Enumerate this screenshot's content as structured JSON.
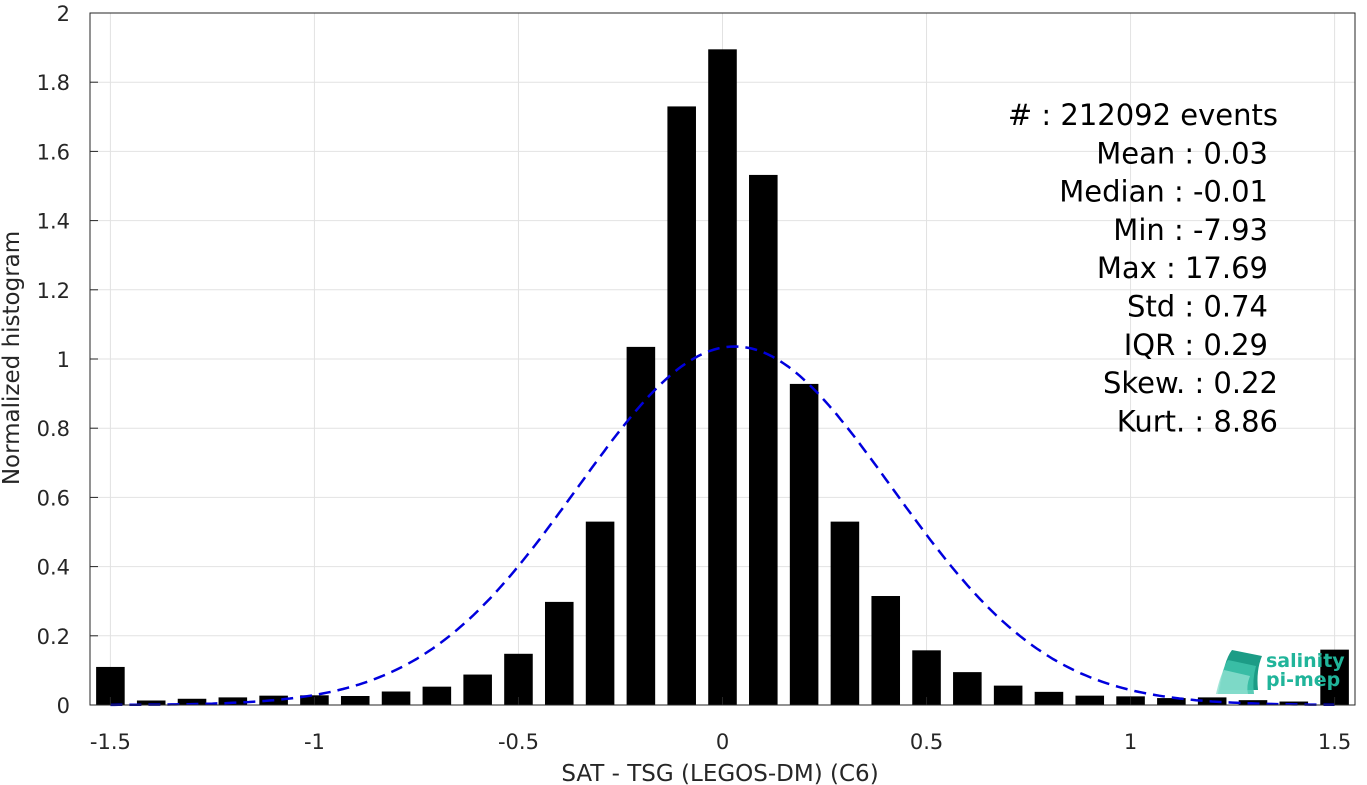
{
  "chart_data": {
    "type": "bar",
    "xlabel": "SAT - TSG (LEGOS-DM) (C6)",
    "ylabel": "Normalized histogram",
    "xlim": [
      -1.55,
      1.55
    ],
    "ylim": [
      0,
      2
    ],
    "xticks": [
      -1.5,
      -1,
      -0.5,
      0,
      0.5,
      1,
      1.5
    ],
    "xtick_labels": [
      "-1.5",
      "-1",
      "-0.5",
      "0",
      "0.5",
      "1",
      "1.5"
    ],
    "yticks": [
      0,
      0.2,
      0.4,
      0.6,
      0.8,
      1,
      1.2,
      1.4,
      1.6,
      1.8,
      2
    ],
    "ytick_labels": [
      "0",
      "0.2",
      "0.4",
      "0.6",
      "0.8",
      "1",
      "1.2",
      "1.4",
      "1.6",
      "1.8",
      "2"
    ],
    "grid": true,
    "bar_color": "#000000",
    "bin_width": 0.1,
    "x": [
      -1.5,
      -1.4,
      -1.3,
      -1.2,
      -1.1,
      -1.0,
      -0.9,
      -0.8,
      -0.7,
      -0.6,
      -0.5,
      -0.4,
      -0.3,
      -0.2,
      -0.1,
      0.0,
      0.1,
      0.2,
      0.3,
      0.4,
      0.5,
      0.6,
      0.7,
      0.8,
      0.9,
      1.0,
      1.1,
      1.2,
      1.3,
      1.4,
      1.5
    ],
    "values": [
      0.11,
      0.013,
      0.018,
      0.022,
      0.027,
      0.028,
      0.026,
      0.039,
      0.053,
      0.088,
      0.148,
      0.298,
      0.53,
      1.035,
      1.73,
      1.895,
      1.532,
      0.928,
      0.53,
      0.315,
      0.158,
      0.095,
      0.056,
      0.038,
      0.027,
      0.025,
      0.02,
      0.022,
      0.014,
      0.01,
      0.16
    ],
    "fit": {
      "type": "gaussian",
      "mean": 0.03,
      "std": 0.385,
      "color": "#0000dd",
      "style": "dashed"
    },
    "annotations": [
      "#  : 212092 events",
      "Mean : 0.03",
      "Median : -0.01",
      "Min : -7.93",
      "Max : 17.69",
      "Std : 0.74",
      "IQR : 0.29",
      "Skew. : 0.22",
      "Kurt. : 8.86"
    ]
  },
  "logo": {
    "line1": "salinity",
    "line2": "pi-mep",
    "color": "#20b49a"
  }
}
